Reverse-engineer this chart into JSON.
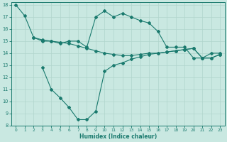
{
  "xlabel": "Humidex (Indice chaleur)",
  "xlim": [
    -0.5,
    23.5
  ],
  "ylim": [
    8,
    18.2
  ],
  "xticks": [
    0,
    1,
    2,
    3,
    4,
    5,
    6,
    7,
    8,
    9,
    10,
    11,
    12,
    13,
    14,
    15,
    16,
    17,
    18,
    19,
    20,
    21,
    22,
    23
  ],
  "yticks": [
    8,
    9,
    10,
    11,
    12,
    13,
    14,
    15,
    16,
    17,
    18
  ],
  "bg_color": "#c9e8e1",
  "line_color": "#1a7a6e",
  "grid_color": "#b0d5cc",
  "line1_x": [
    0,
    1,
    2,
    3,
    4,
    5,
    6,
    7,
    8,
    9,
    10,
    11,
    12,
    13,
    14,
    15,
    16,
    17,
    18,
    19,
    20,
    21,
    22,
    23
  ],
  "line1_y": [
    18.0,
    17.1,
    15.3,
    15.0,
    15.0,
    14.8,
    15.0,
    15.0,
    14.5,
    17.0,
    17.5,
    17.0,
    17.3,
    17.0,
    16.7,
    16.5,
    15.8,
    14.5,
    14.5,
    14.5,
    13.6,
    13.6,
    14.0,
    14.0
  ],
  "line2_x": [
    2,
    3,
    4,
    5,
    6,
    7,
    8,
    9,
    10,
    11,
    12,
    13,
    14,
    15,
    16,
    17,
    18,
    19,
    20,
    21,
    22,
    23
  ],
  "line2_y": [
    15.3,
    15.1,
    15.0,
    14.9,
    14.8,
    14.6,
    14.4,
    14.2,
    14.0,
    13.9,
    13.8,
    13.8,
    13.9,
    14.0,
    14.0,
    14.1,
    14.2,
    14.3,
    14.4,
    13.6,
    13.6,
    13.9
  ],
  "line3_x": [
    3,
    4,
    5,
    6,
    7,
    8,
    9,
    10,
    11,
    12,
    13,
    14,
    15,
    16,
    17,
    18,
    19,
    20,
    21,
    22,
    23
  ],
  "line3_y": [
    12.8,
    11.0,
    10.3,
    9.5,
    8.5,
    8.5,
    9.2,
    12.5,
    13.0,
    13.2,
    13.5,
    13.7,
    13.9,
    14.0,
    14.1,
    14.2,
    14.3,
    14.4,
    13.6,
    13.6,
    13.9
  ]
}
